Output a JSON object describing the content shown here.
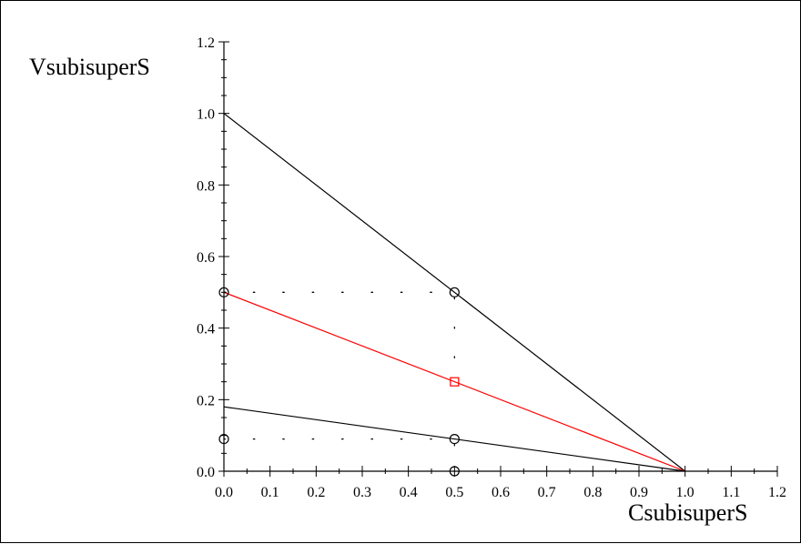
{
  "chart_data": {
    "type": "line",
    "title": "",
    "xlabel": "CsubisuperS",
    "ylabel": "VsubisuperS",
    "xlim": [
      0,
      1.2
    ],
    "ylim": [
      0,
      1.2
    ],
    "x_ticks": [
      0.0,
      0.1,
      0.2,
      0.3,
      0.4,
      0.5,
      0.6,
      0.7,
      0.8,
      0.9,
      1.0,
      1.1,
      1.2
    ],
    "x_tick_labels": [
      "0.0",
      "0.1",
      "0.2",
      "0.3",
      "0.4",
      "0.5",
      "0.6",
      "0.7",
      "0.8",
      "0.9",
      "1.0",
      "1.1",
      "1.2"
    ],
    "y_ticks": [
      0.0,
      0.2,
      0.4,
      0.6,
      0.8,
      1.0,
      1.2
    ],
    "y_tick_labels": [
      "0.0",
      "0.2",
      "0.4",
      "0.6",
      "0.8",
      "1.0",
      "1.2"
    ],
    "x_minor_step": 0.05,
    "y_minor_step": 0.05,
    "grid": false,
    "series": [
      {
        "color": "#000000",
        "style": "solid",
        "points": [
          [
            0,
            1.0
          ],
          [
            1.0,
            0
          ]
        ]
      },
      {
        "color": "#ff0000",
        "style": "solid",
        "points": [
          [
            0,
            0.5
          ],
          [
            1.0,
            0
          ]
        ]
      },
      {
        "color": "#000000",
        "style": "solid",
        "points": [
          [
            0,
            0.18
          ],
          [
            1.0,
            0
          ]
        ]
      },
      {
        "color": "#000000",
        "style": "dotted",
        "points": [
          [
            0,
            0.5
          ],
          [
            0.5,
            0.5
          ],
          [
            0.5,
            0.25
          ]
        ]
      },
      {
        "color": "#000000",
        "style": "dotted",
        "points": [
          [
            0,
            0.09
          ],
          [
            0.5,
            0.09
          ],
          [
            0.5,
            0
          ]
        ]
      }
    ],
    "markers": [
      {
        "x": 0.0,
        "y": 0.5,
        "shape": "circle",
        "color": "#000000"
      },
      {
        "x": 0.5,
        "y": 0.5,
        "shape": "circle",
        "color": "#000000"
      },
      {
        "x": 0.0,
        "y": 0.09,
        "shape": "circle",
        "color": "#000000"
      },
      {
        "x": 0.5,
        "y": 0.09,
        "shape": "circle",
        "color": "#000000"
      },
      {
        "x": 0.5,
        "y": 0.0,
        "shape": "circle",
        "color": "#000000"
      },
      {
        "x": 0.5,
        "y": 0.25,
        "shape": "square",
        "color": "#ff0000"
      }
    ]
  }
}
